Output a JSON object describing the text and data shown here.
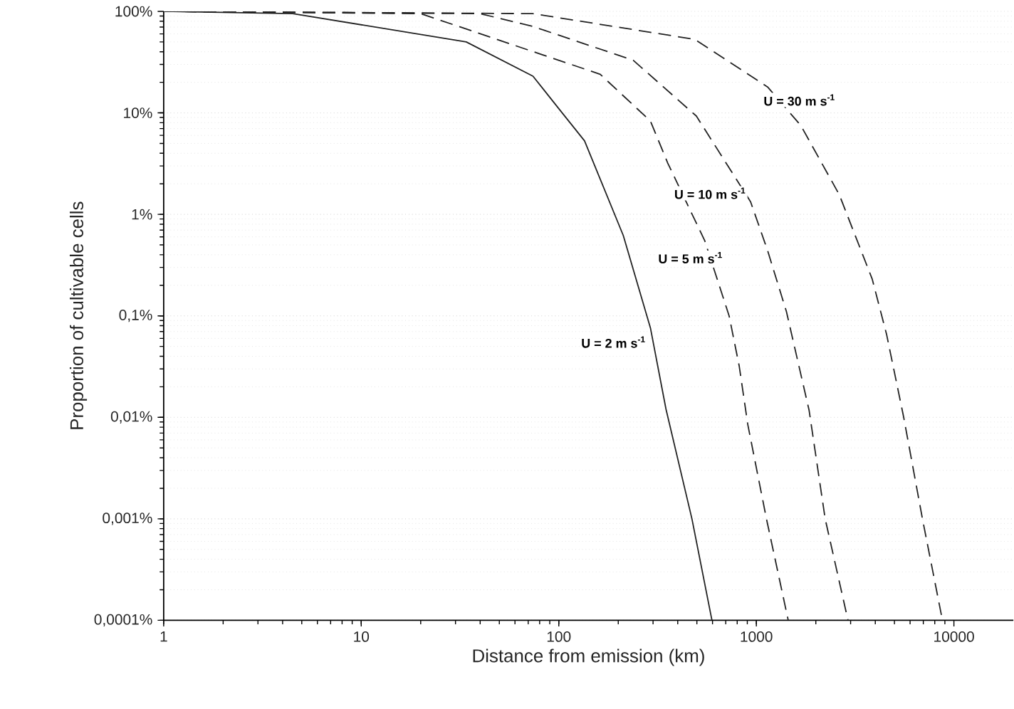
{
  "chart_data": {
    "type": "line",
    "xlabel": "Distance from emission (km)",
    "ylabel": "Proportion of cultivable cells",
    "log": "xy",
    "grid": "y",
    "legend": false,
    "marker": "none",
    "xlim": [
      1,
      20000
    ],
    "xticks": [
      1,
      10,
      100,
      1000,
      10000
    ],
    "ylim": [
      0.0001,
      100
    ],
    "yticks": [
      {
        "value": 0.0001,
        "label": "0,0001%"
      },
      {
        "value": 0.001,
        "label": "0,001%"
      },
      {
        "value": 0.01,
        "label": "0,01%"
      },
      {
        "value": 0.1,
        "label": "0,1%"
      },
      {
        "value": 1,
        "label": "1%"
      },
      {
        "value": 10,
        "label": "10%"
      },
      {
        "value": 100,
        "label": "100%"
      }
    ],
    "series": [
      {
        "name": "U = 2 m s$^{-1}$",
        "color": "#222222",
        "line_style": "solid",
        "x": [
          1,
          4.5,
          34,
          74,
          100,
          135,
          212,
          291,
          349,
          472,
          596
        ],
        "values": [
          100,
          95,
          50,
          23,
          11,
          5.3,
          0.62,
          0.076,
          0.012,
          0.001,
          0.0001
        ]
      },
      {
        "name": "U = 5 m s$^{-1}$",
        "color": "#222222",
        "line_style": "dashed",
        "x": [
          1,
          20,
          162,
          291,
          356,
          548,
          728,
          819,
          905,
          1125,
          1450
        ],
        "values": [
          100,
          95,
          24,
          8.3,
          3.2,
          0.55,
          0.1,
          0.032,
          0.0085,
          0.001,
          0.0001
        ]
      },
      {
        "name": "U = 10 m s$^{-1}$",
        "color": "#222222",
        "line_style": "dashed",
        "x": [
          1,
          40,
          74,
          238,
          497,
          935,
          1140,
          1420,
          1850,
          2230,
          2910
        ],
        "values": [
          100,
          95,
          71,
          33,
          9.3,
          1.33,
          0.44,
          0.11,
          0.0117,
          0.001,
          0.0001
        ]
      },
      {
        "name": "U = 30 m s$^{-1}$",
        "color": "#222222",
        "line_style": "dashed",
        "x": [
          1,
          74,
          488,
          1140,
          1680,
          2630,
          3860,
          4560,
          5570,
          6930,
          8750
        ],
        "values": [
          100,
          95,
          53,
          18,
          7.5,
          1.56,
          0.23,
          0.066,
          0.01,
          0.001,
          0.0001
        ]
      }
    ]
  }
}
